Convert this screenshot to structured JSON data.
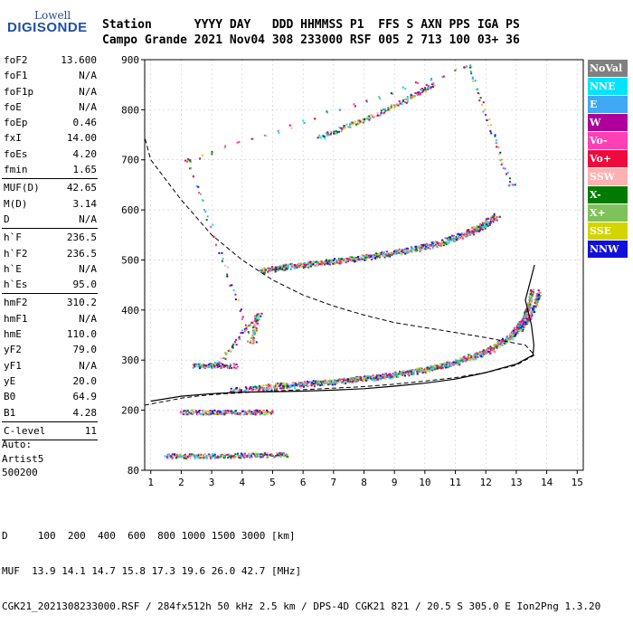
{
  "logo": {
    "top": "Lowell",
    "bottom": "DIGISONDE"
  },
  "header": {
    "row1": "Station      YYYY DAY   DDD HHMMSS P1  FFS S AXN PPS IGA PS",
    "row2": "Campo Grande 2021 Nov04 308 233000 RSF 005 2 713 100 03+ 36"
  },
  "params": [
    [
      [
        "foF2",
        "13.600"
      ],
      [
        "foF1",
        "N/A"
      ],
      [
        "foF1p",
        "N/A"
      ],
      [
        "foE",
        "N/A"
      ],
      [
        "foEp",
        "0.46"
      ],
      [
        "fxI",
        "14.00"
      ],
      [
        "foEs",
        "4.20"
      ],
      [
        "fmin",
        "1.65"
      ]
    ],
    [
      [
        "MUF(D)",
        "42.65"
      ],
      [
        "M(D)",
        "3.14"
      ],
      [
        "D",
        "N/A"
      ]
    ],
    [
      [
        "h`F",
        "236.5"
      ],
      [
        "h`F2",
        "236.5"
      ],
      [
        "h`E",
        "N/A"
      ],
      [
        "h`Es",
        "95.0"
      ]
    ],
    [
      [
        "hmF2",
        "310.2"
      ],
      [
        "hmF1",
        "N/A"
      ],
      [
        "hmE",
        "110.0"
      ],
      [
        "yF2",
        "79.0"
      ],
      [
        "yF1",
        "N/A"
      ],
      [
        "yE",
        "20.0"
      ],
      [
        "B0",
        "64.9"
      ],
      [
        "B1",
        "4.28"
      ]
    ],
    [
      [
        "C-level",
        "11"
      ]
    ]
  ],
  "auto": {
    "line1": "Auto:",
    "line2": "Artist5",
    "line3": "500200"
  },
  "footer": {
    "line1": "D     100  200  400  600  800 1000 1500 3000 [km]",
    "line2": "MUF  13.9 14.1 14.7 15.8 17.3 19.6 26.0 42.7 [MHz]",
    "line3": "CGK21_2021308233000.RSF / 284fx512h 50 kHz 2.5 km / DPS-4D CGK21 821 / 20.5 S 305.0 E Ion2Png 1.3.20"
  },
  "legend": [
    {
      "label": "NoVal",
      "color": "#808080"
    },
    {
      "label": "NNE",
      "color": "#00e4ff"
    },
    {
      "label": "E",
      "color": "#3fa9f5"
    },
    {
      "label": "W",
      "color": "#b0009c"
    },
    {
      "label": "Vo-",
      "color": "#ff3fb4"
    },
    {
      "label": "Vo+",
      "color": "#ee0a3c"
    },
    {
      "label": "SSW",
      "color": "#ffb0b0"
    },
    {
      "label": "X-",
      "color": "#007a00"
    },
    {
      "label": "X+",
      "color": "#7fc15a"
    },
    {
      "label": "SSE",
      "color": "#d4d400"
    },
    {
      "label": "NNW",
      "color": "#1010d8"
    }
  ],
  "chart_data": {
    "type": "scatter",
    "xlabel": "",
    "ylabel": "",
    "xlim": [
      0.8,
      15.2
    ],
    "ylim": [
      80,
      900
    ],
    "xticks": [
      1,
      2,
      3,
      4,
      5,
      6,
      7,
      8,
      9,
      10,
      11,
      12,
      13,
      14,
      15
    ],
    "yticks": [
      80,
      200,
      300,
      400,
      500,
      600,
      700,
      800,
      900
    ],
    "traces": [
      {
        "name": "O-trace F (virtual height)",
        "points": [
          [
            4.6,
            481
          ],
          [
            5.5,
            489
          ],
          [
            6.5,
            496
          ],
          [
            7.5,
            503
          ],
          [
            8.5,
            512
          ],
          [
            9.5,
            523
          ],
          [
            10.5,
            537
          ],
          [
            11.2,
            552
          ],
          [
            11.8,
            569
          ],
          [
            12.3,
            590
          ]
        ]
      },
      {
        "name": "X-trace F (virtual height)",
        "points": [
          [
            4.7,
            480
          ],
          [
            5.5,
            487
          ],
          [
            6.5,
            494
          ],
          [
            7.5,
            501
          ],
          [
            8.5,
            509
          ],
          [
            9.5,
            520
          ],
          [
            10.5,
            534
          ],
          [
            11.3,
            550
          ],
          [
            11.9,
            568
          ],
          [
            12.4,
            588
          ]
        ]
      },
      {
        "name": "Upper multihop",
        "points": [
          [
            6.5,
            745
          ],
          [
            7.5,
            770
          ],
          [
            8.5,
            795
          ],
          [
            9.5,
            825
          ],
          [
            10.3,
            855
          ]
        ]
      },
      {
        "name": "F layer low",
        "points": [
          [
            3.6,
            240
          ],
          [
            5,
            250
          ],
          [
            6,
            254
          ],
          [
            7,
            259
          ],
          [
            8,
            265
          ],
          [
            9,
            273
          ],
          [
            10,
            283
          ],
          [
            11,
            298
          ],
          [
            12,
            320
          ],
          [
            12.8,
            350
          ],
          [
            13.2,
            380
          ],
          [
            13.4,
            410
          ],
          [
            13.5,
            440
          ]
        ]
      },
      {
        "name": "F layer X",
        "points": [
          [
            4.5,
            243
          ],
          [
            6,
            252
          ],
          [
            7,
            257
          ],
          [
            8,
            263
          ],
          [
            9,
            271
          ],
          [
            10,
            281
          ],
          [
            11,
            295
          ],
          [
            12,
            315
          ],
          [
            12.8,
            345
          ],
          [
            13.3,
            375
          ],
          [
            13.6,
            410
          ],
          [
            13.75,
            440
          ]
        ]
      },
      {
        "name": "Es 200km",
        "points": [
          [
            2,
            197
          ],
          [
            3,
            197
          ],
          [
            4,
            197
          ],
          [
            5,
            197
          ]
        ]
      },
      {
        "name": "Es 290km",
        "points": [
          [
            2.4,
            290
          ],
          [
            3,
            290
          ],
          [
            3.8,
            290
          ]
        ]
      },
      {
        "name": "low 100km",
        "points": [
          [
            1.5,
            110
          ],
          [
            2.5,
            110
          ],
          [
            3.5,
            110
          ],
          [
            4.5,
            112
          ],
          [
            5.5,
            112
          ]
        ]
      },
      {
        "name": "scattered",
        "points": [
          [
            3.2,
            295
          ],
          [
            4.5,
            392
          ],
          [
            4.3,
            338
          ],
          [
            2.2,
            700
          ],
          [
            11.4,
            888
          ],
          [
            12.8,
            650
          ]
        ]
      }
    ],
    "profile_solid": {
      "x": [
        1,
        2,
        3,
        4,
        5,
        6,
        7,
        8,
        9,
        10,
        11,
        12,
        13,
        13.55,
        13.58,
        13.5,
        13.3,
        13.6
      ],
      "y": [
        218,
        228,
        233,
        236,
        237,
        238,
        240,
        243,
        248,
        254,
        262,
        275,
        292,
        310,
        330,
        370,
        420,
        490
      ]
    },
    "profile_dashed": {
      "x": [
        0.8,
        1.5,
        2,
        2.5,
        3,
        4,
        5,
        6,
        7,
        8,
        9,
        10,
        11,
        12,
        13,
        13.6,
        13.3,
        12,
        11,
        10,
        9,
        8,
        7,
        6,
        5,
        4,
        3,
        2,
        1.5,
        1,
        0.8
      ],
      "y": [
        210,
        218,
        224,
        228,
        231,
        235,
        238,
        241,
        244,
        247,
        252,
        258,
        265,
        275,
        290,
        310,
        330,
        345,
        355,
        365,
        375,
        390,
        408,
        430,
        460,
        500,
        550,
        620,
        660,
        700,
        745
      ]
    }
  }
}
